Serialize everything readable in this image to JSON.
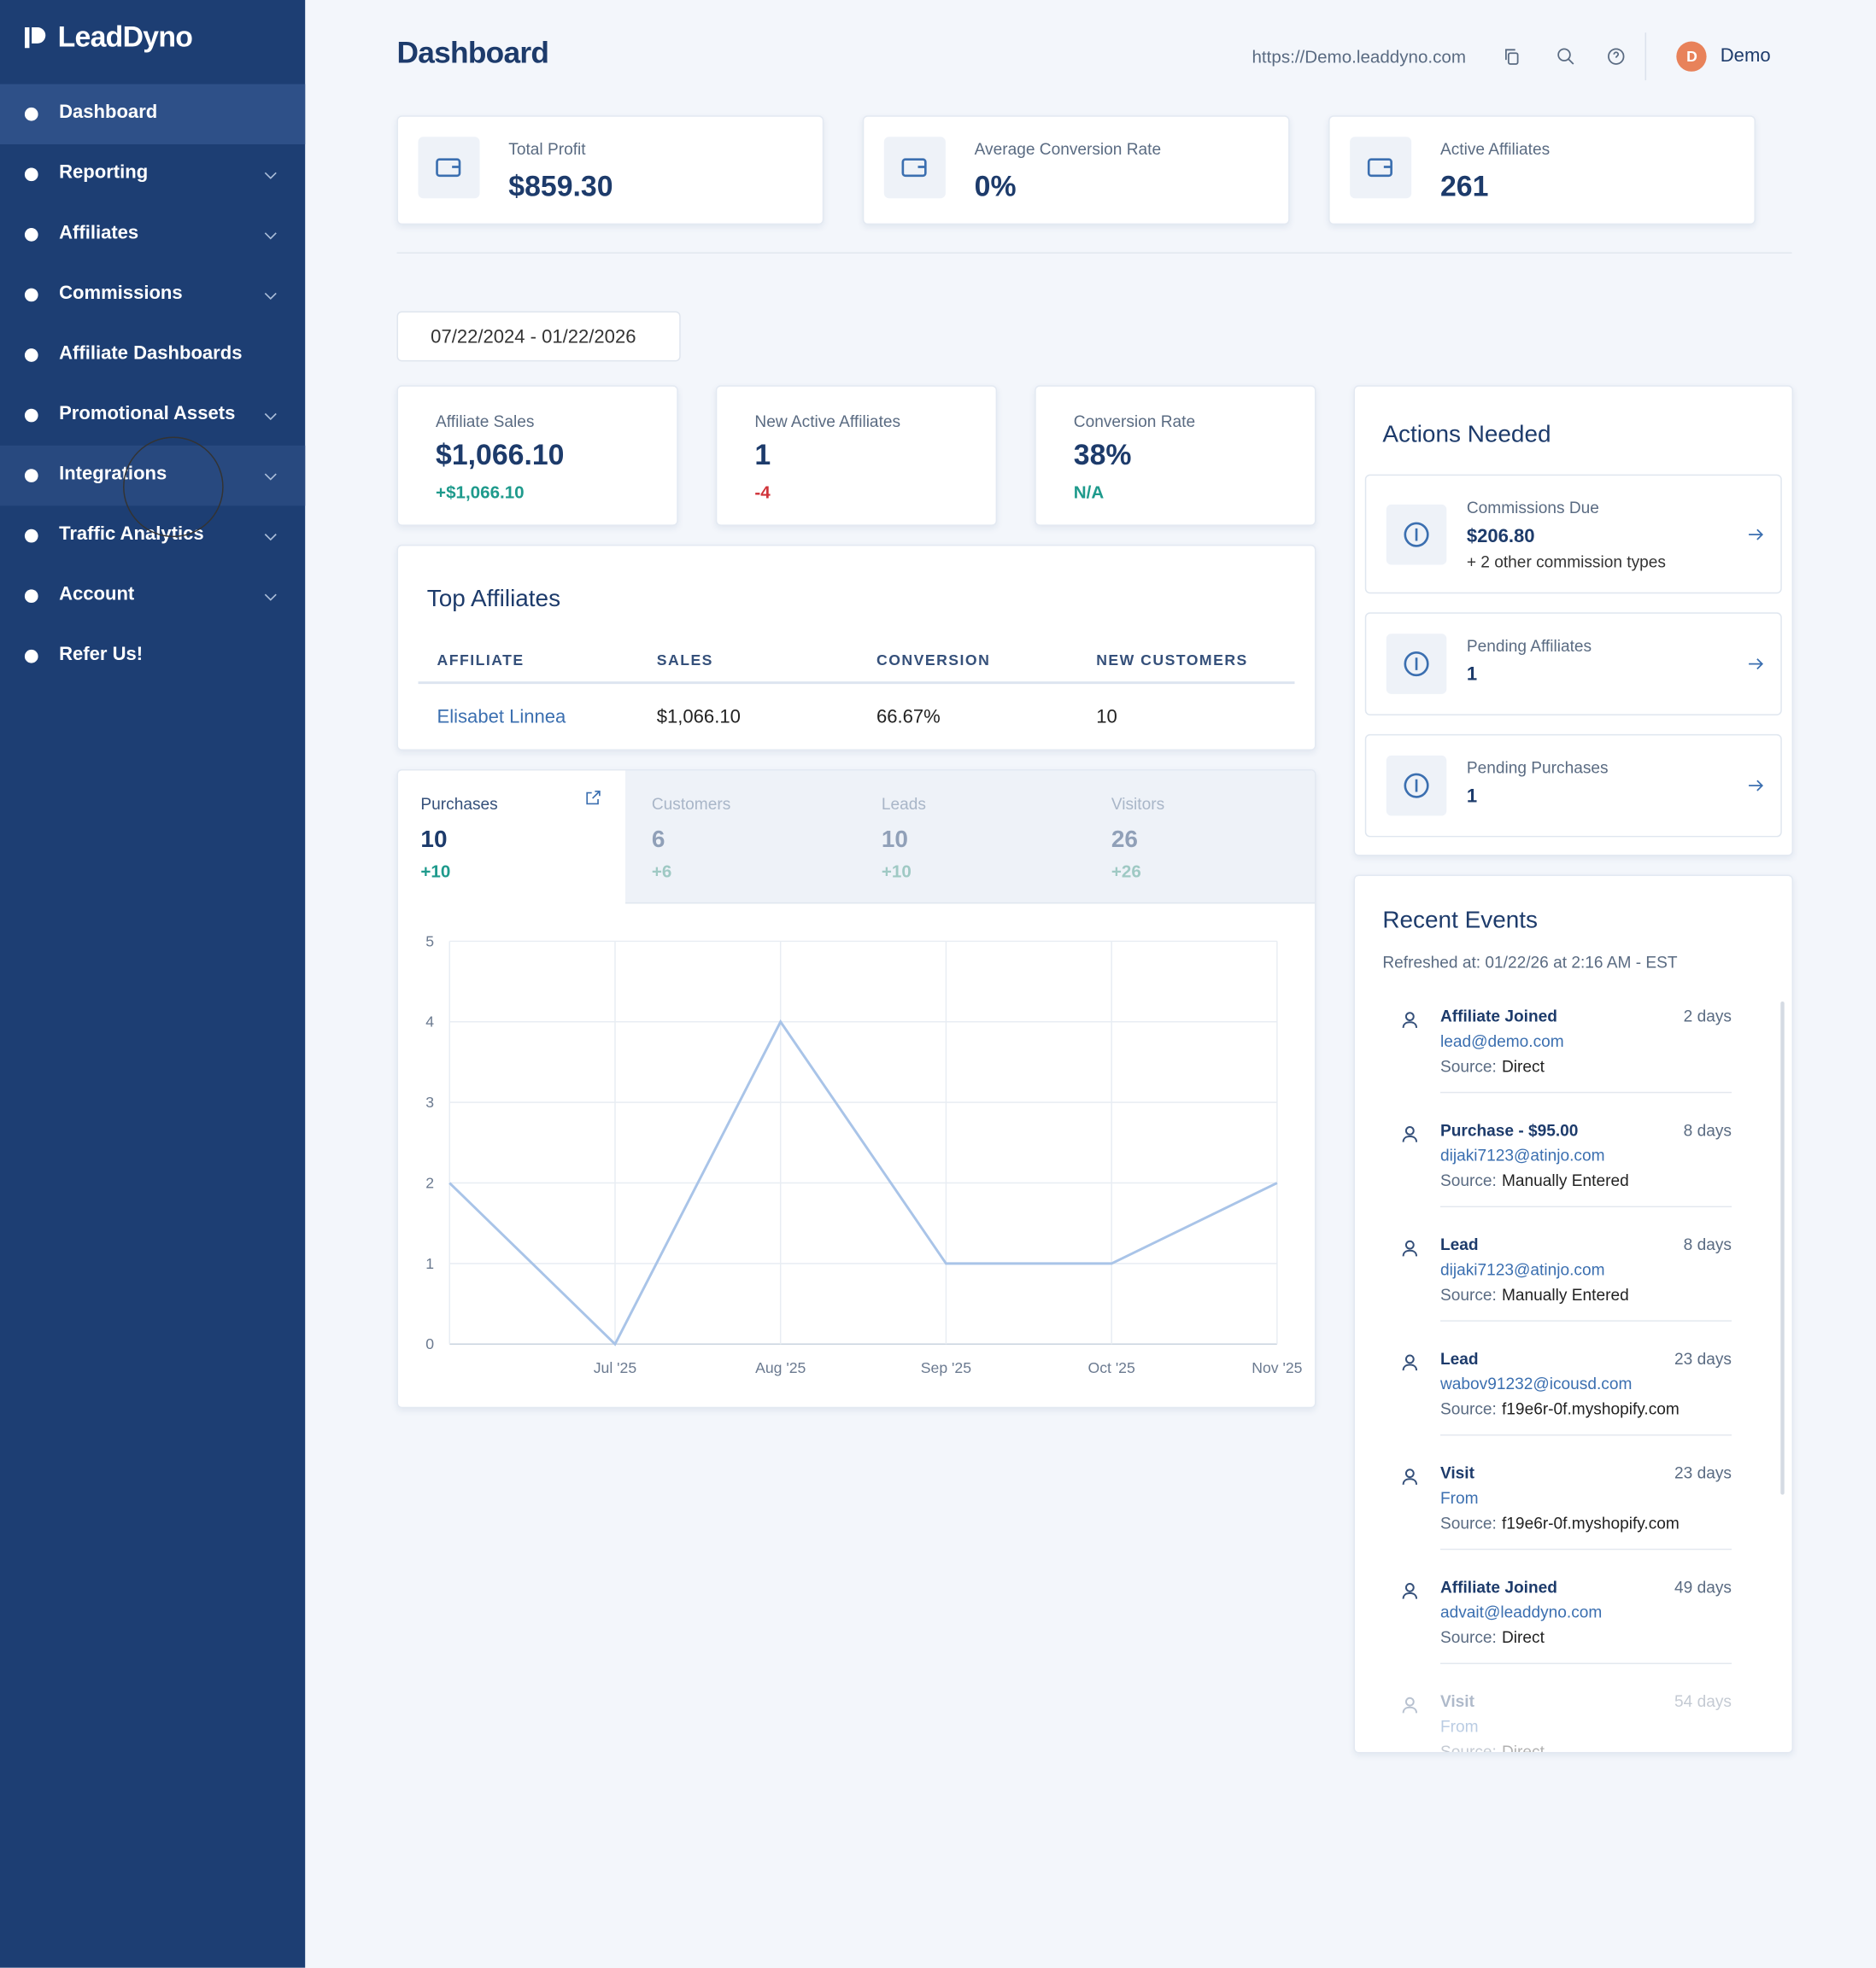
{
  "sidebar": {
    "logo": "LeadDyno",
    "items": [
      {
        "label": "Dashboard",
        "expandable": false
      },
      {
        "label": "Reporting",
        "expandable": true
      },
      {
        "label": "Affiliates",
        "expandable": true
      },
      {
        "label": "Commissions",
        "expandable": true
      },
      {
        "label": "Affiliate Dashboards",
        "expandable": false
      },
      {
        "label": "Promotional Assets",
        "expandable": true
      },
      {
        "label": "Integrations",
        "expandable": true
      },
      {
        "label": "Traffic Analytics",
        "expandable": true
      },
      {
        "label": "Account",
        "expandable": true
      },
      {
        "label": "Refer Us!",
        "expandable": false
      }
    ]
  },
  "header": {
    "title": "Dashboard",
    "url": "https://Demo.leaddyno.com",
    "avatar": "D",
    "user": "Demo"
  },
  "stats": [
    {
      "label": "Total Profit",
      "value": "$859.30"
    },
    {
      "label": "Average Conversion Rate",
      "value": "0%"
    },
    {
      "label": "Active Affiliates",
      "value": "261"
    }
  ],
  "date_range": "07/22/2024 - 01/22/2026",
  "kpis": [
    {
      "label": "Affiliate Sales",
      "value": "$1,066.10",
      "change": "+$1,066.10"
    },
    {
      "label": "New Active Affiliates",
      "value": "1",
      "change": "-4"
    },
    {
      "label": "Conversion Rate",
      "value": "38%",
      "change": "N/A"
    }
  ],
  "top_affiliates": {
    "title": "Top Affiliates",
    "columns": [
      "AFFILIATE",
      "SALES",
      "CONVERSION",
      "NEW CUSTOMERS"
    ],
    "rows": [
      [
        "Elisabet Linnea",
        "$1,066.10",
        "66.67%",
        "10"
      ]
    ]
  },
  "tabs": [
    {
      "label": "Purchases",
      "value": "10",
      "change": "+10"
    },
    {
      "label": "Customers",
      "value": "6",
      "change": "+6"
    },
    {
      "label": "Leads",
      "value": "10",
      "change": "+10"
    },
    {
      "label": "Visitors",
      "value": "26",
      "change": "+26"
    }
  ],
  "chart_data": {
    "type": "line",
    "categories": [
      null,
      "Jul '25",
      "Aug '25",
      "Sep '25",
      "Oct '25",
      "Nov '25"
    ],
    "series": [
      {
        "name": "Purchases",
        "color": "#a9c4e8",
        "values": [
          2,
          0,
          4,
          1,
          1,
          2
        ]
      }
    ],
    "ylim": [
      0,
      5
    ],
    "yticks": [
      0,
      1,
      2,
      3,
      4,
      5
    ],
    "grid": true
  },
  "actions": {
    "title": "Actions Needed",
    "items": [
      {
        "label": "Commissions Due",
        "value": "$206.80",
        "note": "+ 2 other commission types"
      },
      {
        "label": "Pending Affiliates",
        "value": "1"
      },
      {
        "label": "Pending Purchases",
        "value": "1"
      }
    ]
  },
  "events": {
    "title": "Recent Events",
    "refreshed": "Refreshed at: 01/22/26 at 2:16 AM - EST",
    "source_label": "Source:",
    "items": [
      {
        "title": "Affiliate Joined",
        "age": "2 days",
        "detail": "lead@demo.com",
        "source": "Direct"
      },
      {
        "title": "Purchase - $95.00",
        "age": "8 days",
        "detail": "dijaki7123@atinjo.com",
        "source": "Manually Entered"
      },
      {
        "title": "Lead",
        "age": "8 days",
        "detail": "dijaki7123@atinjo.com",
        "source": "Manually Entered"
      },
      {
        "title": "Lead",
        "age": "23 days",
        "detail": "wabov91232@icousd.com",
        "source": "f19e6r-0f.myshopify.com"
      },
      {
        "title": "Visit",
        "age": "23 days",
        "detail": "From",
        "source": "f19e6r-0f.myshopify.com"
      },
      {
        "title": "Affiliate Joined",
        "age": "49 days",
        "detail": "advait@leaddyno.com",
        "source": "Direct"
      },
      {
        "title": "Visit",
        "age": "54 days",
        "detail": "From",
        "source": "Direct"
      }
    ]
  }
}
